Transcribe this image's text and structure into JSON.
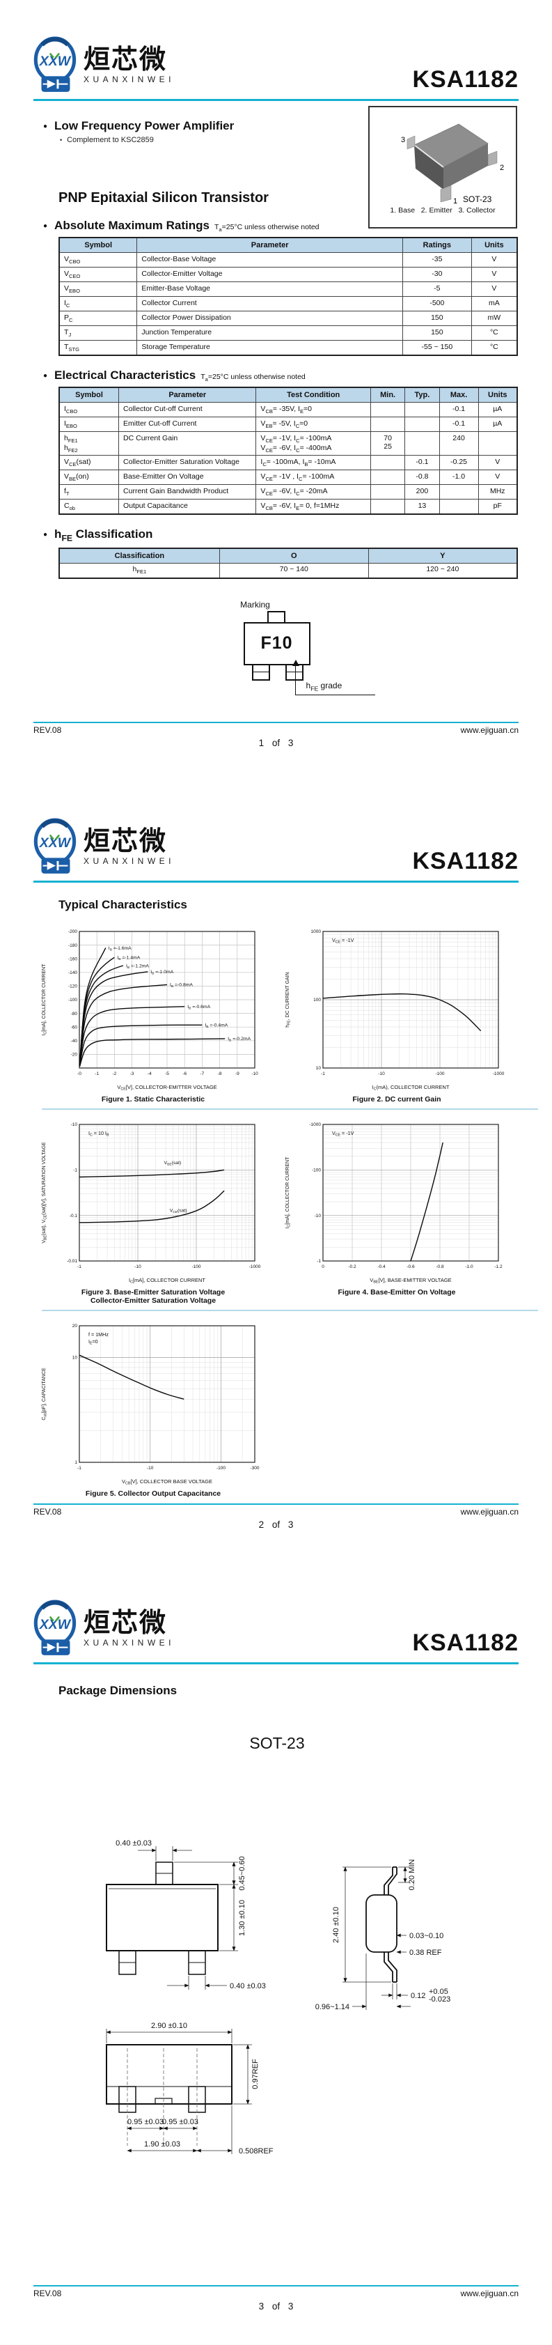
{
  "accent": "#14b2d2",
  "header": {
    "logo_xxw": "XXW",
    "logo_cn": "烜芯微",
    "logo_en": "XUANXINWEI",
    "part": "KSA1182"
  },
  "footer": {
    "rev": "REV.08",
    "site": "www.ejiguan.cn",
    "pages": [
      "1 of 3",
      "2 of 3",
      "3 of 3"
    ]
  },
  "page1": {
    "feature_title": "Low Frequency Power Amplifier",
    "feature_sub": "Complement to KSC2859",
    "package_label": "SOT-23",
    "pin1": "1",
    "pin2": "2",
    "pin3": "3",
    "pin_caption": "1. Base   2. Emitter   3. Collector",
    "subtitle": "PNP Epitaxial Silicon Transistor",
    "abs_max": {
      "title": "Absolute Maximum Ratings",
      "condition": "T{a}=25°C unless otherwise noted",
      "headers": [
        "Symbol",
        "Parameter",
        "Ratings",
        "Units"
      ],
      "rows": [
        [
          "V{CBO}",
          "Collector-Base Voltage",
          "-35",
          "V"
        ],
        [
          "V{CEO}",
          "Collector-Emitter Voltage",
          "-30",
          "V"
        ],
        [
          "V{EBO}",
          "Emitter-Base Voltage",
          "-5",
          "V"
        ],
        [
          "I{C}",
          "Collector Current",
          "-500",
          "mA"
        ],
        [
          "P{C}",
          "Collector Power Dissipation",
          "150",
          "mW"
        ],
        [
          "T{J}",
          "Junction Temperature",
          "150",
          "°C"
        ],
        [
          "T{STG}",
          "Storage Temperature",
          "-55 ~ 150",
          "°C"
        ]
      ]
    },
    "elec": {
      "title": "Electrical Characteristics",
      "condition": "T{a}=25°C unless otherwise noted",
      "headers": [
        "Symbol",
        "Parameter",
        "Test Condition",
        "Min.",
        "Typ.",
        "Max.",
        "Units"
      ],
      "rows": [
        [
          "I{CBO}",
          "Collector Cut-off Current",
          "V{CB}= -35V, I{E}=0",
          "",
          "",
          "-0.1",
          "µA"
        ],
        [
          "I{EBO}",
          "Emitter Cut-off Current",
          "V{EB}= -5V, I{C}=0",
          "",
          "",
          "-0.1",
          "µA"
        ],
        [
          "h{FE1}\nh{FE2}",
          "DC Current Gain",
          "V{CE}= -1V, I{C}= -100mA\nV{CE}= -6V, I{C}= -400mA",
          "70\n25",
          "",
          "240",
          ""
        ],
        [
          "V{CE}(sat)",
          "Collector-Emitter Saturation Voltage",
          "I{C}= -100mA, I{B}= -10mA",
          "",
          "-0.1",
          "-0.25",
          "V"
        ],
        [
          "V{BE}(on)",
          "Base-Emitter On Voltage",
          "V{CE}= -1V , I{C}= -100mA",
          "",
          "-0.8",
          "-1.0",
          "V"
        ],
        [
          "f{T}",
          "Current Gain Bandwidth Product",
          "V{CE}= -6V, I{C}= -20mA",
          "",
          "200",
          "",
          "MHz"
        ],
        [
          "C{ob}",
          "Output Capacitance",
          "V{CB}= -6V, I{E}= 0, f=1MHz",
          "",
          "13",
          "",
          "pF"
        ]
      ]
    },
    "hfe": {
      "title": "h{FE} Classification",
      "headers": [
        "Classification",
        "O",
        "Y"
      ],
      "rows": [
        [
          "h{FE1}",
          "70 ~ 140",
          "120 ~ 240"
        ]
      ]
    },
    "marking": {
      "label": "Marking",
      "code": "F10",
      "callout": "h{FE} grade"
    }
  },
  "page2": {
    "title": "Typical Characteristics"
  },
  "chart_data": [
    {
      "type": "line",
      "title": "Figure 1. Static Characteristic",
      "xlabel": "V{CE}[V], COLLECTOR-EMITTER VOLTAGE",
      "ylabel": "I{C}[mA], COLLECTOR CURRENT",
      "xscale": "linear",
      "yscale": "linear",
      "xlim": [
        0,
        10
      ],
      "ylim": [
        0,
        200
      ],
      "xticks": [
        0,
        1,
        2,
        3,
        4,
        5,
        6,
        7,
        8,
        9,
        10
      ],
      "xtick_labels": [
        "-0",
        "-1",
        "-2",
        "-3",
        "-4",
        "-5",
        "-6",
        "-7",
        "-8",
        "-9",
        "-10"
      ],
      "yticks": [
        20,
        40,
        60,
        80,
        100,
        120,
        140,
        160,
        180,
        200
      ],
      "ytick_labels": [
        "-20",
        "-40",
        "-60",
        "-80",
        "-100",
        "-120",
        "-140",
        "-160",
        "-180",
        "-200"
      ],
      "grid": true,
      "legend_position": "curve-ends",
      "annotation": "",
      "series": [
        {
          "name": "I{B} =-1.6mA",
          "points": [
            [
              0.02,
              5
            ],
            [
              0.2,
              76
            ],
            [
              0.4,
              112
            ],
            [
              0.7,
              136
            ],
            [
              1.0,
              152
            ],
            [
              1.3,
              166
            ],
            [
              1.5,
              176
            ]
          ]
        },
        {
          "name": "I{B} =-1.4mA",
          "points": [
            [
              0.02,
              5
            ],
            [
              0.2,
              72
            ],
            [
              0.4,
              106
            ],
            [
              0.7,
              128
            ],
            [
              1.0,
              140
            ],
            [
              1.5,
              153
            ],
            [
              2.0,
              162
            ]
          ]
        },
        {
          "name": "I{B} =-1.2mA",
          "points": [
            [
              0.02,
              5
            ],
            [
              0.2,
              68
            ],
            [
              0.4,
              100
            ],
            [
              0.7,
              119
            ],
            [
              1.0,
              130
            ],
            [
              1.5,
              140
            ],
            [
              2.0,
              146
            ],
            [
              2.5,
              150
            ]
          ]
        },
        {
          "name": "I{B} =-1.0mA",
          "points": [
            [
              0.02,
              5
            ],
            [
              0.2,
              62
            ],
            [
              0.4,
              92
            ],
            [
              0.7,
              110
            ],
            [
              1.0,
              120
            ],
            [
              1.5,
              129
            ],
            [
              2.0,
              133
            ],
            [
              3.0,
              138
            ],
            [
              3.9,
              141
            ]
          ]
        },
        {
          "name": "I{B} =-0.8mA",
          "points": [
            [
              0.02,
              4
            ],
            [
              0.2,
              54
            ],
            [
              0.4,
              79
            ],
            [
              0.7,
              95
            ],
            [
              1.0,
              103
            ],
            [
              1.5,
              110
            ],
            [
              2.0,
              114
            ],
            [
              3.0,
              118
            ],
            [
              4.0,
              120
            ],
            [
              5.0,
              122
            ]
          ]
        },
        {
          "name": "I{B} =-0.6mA",
          "points": [
            [
              0.02,
              4
            ],
            [
              0.2,
              44
            ],
            [
              0.4,
              62
            ],
            [
              0.7,
              73
            ],
            [
              1.0,
              79
            ],
            [
              1.5,
              84
            ],
            [
              2.0,
              86
            ],
            [
              3.0,
              88
            ],
            [
              4.5,
              89
            ],
            [
              6.0,
              90
            ]
          ]
        },
        {
          "name": "I{B} =-0.4mA",
          "points": [
            [
              0.02,
              3
            ],
            [
              0.2,
              32
            ],
            [
              0.4,
              46
            ],
            [
              0.7,
              54
            ],
            [
              1.0,
              58
            ],
            [
              1.5,
              60
            ],
            [
              2.0,
              61
            ],
            [
              3.0,
              62
            ],
            [
              5.0,
              63
            ],
            [
              7.0,
              63
            ]
          ]
        },
        {
          "name": "I{B} =-0.2mA",
          "points": [
            [
              0.02,
              2
            ],
            [
              0.2,
              20
            ],
            [
              0.4,
              30
            ],
            [
              0.7,
              36
            ],
            [
              1.0,
              39
            ],
            [
              1.5,
              41
            ],
            [
              2.0,
              41
            ],
            [
              3.0,
              42
            ],
            [
              5.0,
              42
            ],
            [
              8.3,
              43
            ]
          ]
        }
      ]
    },
    {
      "type": "line",
      "title": "Figure 2. DC current Gain",
      "xlabel": "I{C}(mA), COLLECTOR CURRENT",
      "ylabel": "h{FE}, DC CURRENT GAIN",
      "xscale": "log",
      "yscale": "log",
      "xlim": [
        1,
        1000
      ],
      "ylim": [
        10,
        1000
      ],
      "xticks": [
        1,
        10,
        100,
        1000
      ],
      "xtick_labels": [
        "-1",
        "-10",
        "-100",
        "-1000"
      ],
      "yticks": [
        10,
        100,
        1000
      ],
      "ytick_labels": [
        "10",
        "100",
        "1000"
      ],
      "grid": true,
      "annotation": "V{CE} = -1V",
      "series": [
        {
          "name": "",
          "points": [
            [
              1,
              105
            ],
            [
              2,
              110
            ],
            [
              5,
              116
            ],
            [
              10,
              120
            ],
            [
              20,
              122
            ],
            [
              30,
              121
            ],
            [
              50,
              117
            ],
            [
              80,
              107
            ],
            [
              100,
              100
            ],
            [
              150,
              85
            ],
            [
              200,
              72
            ],
            [
              300,
              55
            ],
            [
              500,
              35
            ]
          ]
        }
      ]
    },
    {
      "type": "line",
      "title": "Figure 3. Base-Emitter Saturation Voltage",
      "title2": "Collector-Emitter Saturation Voltage",
      "xlabel": "I{C}[mA], COLLECTOR CURRENT",
      "ylabel": "V{BE}(sat), V{CE}(sat)[V], SATURATION VOLTAGE",
      "xscale": "log",
      "yscale": "log",
      "xlim": [
        1,
        1000
      ],
      "ylim": [
        0.01,
        10
      ],
      "xticks": [
        1,
        10,
        100,
        1000
      ],
      "xtick_labels": [
        "-1",
        "-10",
        "-100",
        "-1000"
      ],
      "yticks": [
        0.01,
        0.1,
        1,
        10
      ],
      "ytick_labels": [
        "-0.01",
        "-0.1",
        "-1",
        "-10"
      ],
      "grid": true,
      "annotation": "I{C} = 10 I{B}",
      "series": [
        {
          "name": "V{BE}(sat)",
          "label_pos": [
            28,
            1.35
          ],
          "points": [
            [
              1,
              0.7
            ],
            [
              3,
              0.72
            ],
            [
              10,
              0.75
            ],
            [
              30,
              0.79
            ],
            [
              100,
              0.85
            ],
            [
              200,
              0.92
            ],
            [
              300,
              1.0
            ]
          ]
        },
        {
          "name": "V{CE}(sat)",
          "label_pos": [
            35,
            0.12
          ],
          "points": [
            [
              1,
              0.07
            ],
            [
              3,
              0.071
            ],
            [
              10,
              0.075
            ],
            [
              30,
              0.083
            ],
            [
              100,
              0.12
            ],
            [
              200,
              0.21
            ],
            [
              300,
              0.35
            ]
          ]
        }
      ]
    },
    {
      "type": "line",
      "title": "Figure 4. Base-Emitter On Voltage",
      "xlabel": "V{BE}[V], BASE-EMITTER VOLTAGE",
      "ylabel": "I{C}[mA], COLLECTOR CURRENT",
      "xscale": "linear",
      "yscale": "log",
      "xlim": [
        0,
        1.2
      ],
      "ylim": [
        1,
        1000
      ],
      "xticks": [
        0,
        0.2,
        0.4,
        0.6,
        0.8,
        1.0,
        1.2
      ],
      "xtick_labels": [
        "0",
        "-0.2",
        "-0.4",
        "-0.6",
        "-0.8",
        "-1.0",
        "-1.2"
      ],
      "yticks": [
        1,
        10,
        100,
        1000
      ],
      "ytick_labels": [
        "-1",
        "-10",
        "-100",
        "-1000"
      ],
      "grid": true,
      "annotation": "V{CE} = -1V",
      "series": [
        {
          "name": "",
          "points": [
            [
              0.6,
              1
            ],
            [
              0.64,
              2.5
            ],
            [
              0.68,
              7
            ],
            [
              0.72,
              20
            ],
            [
              0.76,
              60
            ],
            [
              0.79,
              150
            ],
            [
              0.82,
              400
            ]
          ]
        }
      ]
    },
    {
      "type": "line",
      "title": "Figure 5. Collector Output Capacitance",
      "xlabel": "V{CB}[V], COLLECTOR BASE VOLTAGE",
      "ylabel": "C{ob}[pF], CAPACITANCE",
      "xscale": "log",
      "yscale": "log",
      "xlim": [
        1,
        300
      ],
      "ylim": [
        1,
        20
      ],
      "xticks": [
        1,
        10,
        100,
        300
      ],
      "xtick_labels": [
        "-1",
        "-10",
        "-100",
        "-300"
      ],
      "yticks": [
        1,
        10,
        20
      ],
      "ytick_labels": [
        "1",
        "10",
        "20"
      ],
      "grid": true,
      "annotation": "f = 1MHz\nI{E}=0",
      "series": [
        {
          "name": "",
          "points": [
            [
              1,
              10.5
            ],
            [
              1.5,
              9.3
            ],
            [
              2,
              8.5
            ],
            [
              3,
              7.4
            ],
            [
              5,
              6.3
            ],
            [
              7,
              5.7
            ],
            [
              10,
              5.1
            ],
            [
              15,
              4.6
            ],
            [
              20,
              4.3
            ],
            [
              30,
              4.0
            ]
          ]
        }
      ]
    }
  ],
  "page3": {
    "title": "Package Dimensions",
    "package": "SOT-23",
    "dims": {
      "front_top_pin_width": "0.40 ±0.03",
      "front_top_pin_height": "0.45~0.60",
      "front_body_height": "1.30 ±0.10",
      "front_bottom_pin_width": "0.40 ±0.03",
      "side_total_height": "2.40 ±0.10",
      "side_top_lead": "0.20 MIN",
      "side_body_edge": "0.03~0.10",
      "side_ref": "0.38 REF",
      "side_lead_thickness": "0.12",
      "side_lead_tol_up": "+0.05",
      "side_lead_tol_dn": "-0.023",
      "side_foot_span": "0.96~1.14",
      "bottom_width": "2.90 ±0.10",
      "bottom_depth": "0.97REF",
      "pitch_left": "0.95 ±0.03",
      "pitch_right": "0.95 ±0.03",
      "pin_span": "1.90 ±0.03",
      "edge_ref": "0.508REF"
    }
  }
}
